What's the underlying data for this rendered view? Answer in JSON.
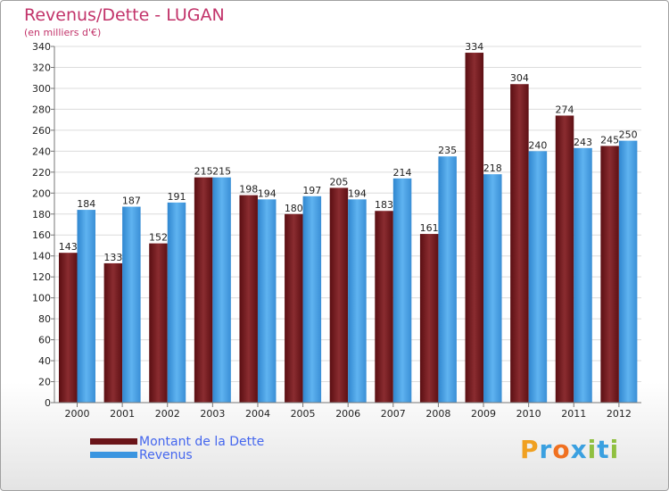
{
  "title": "Revenus/Dette - LUGAN",
  "subtitle": "(en milliers d'€)",
  "logo": {
    "text": "Proxiti",
    "letters": [
      "P",
      "r",
      "o",
      "x",
      "i",
      "t",
      "i"
    ],
    "colors": [
      "#f0a020",
      "#3aa0e0",
      "#f07020",
      "#3aa0e0",
      "#90c040",
      "#3aa0e0",
      "#90c040"
    ]
  },
  "chart_data": {
    "type": "bar",
    "categories": [
      "2000",
      "2001",
      "2002",
      "2003",
      "2004",
      "2005",
      "2006",
      "2007",
      "2008",
      "2009",
      "2010",
      "2011",
      "2012"
    ],
    "series": [
      {
        "name": "Montant de la Dette",
        "color": "#7a2226",
        "values": [
          143,
          133,
          152,
          215,
          198,
          180,
          205,
          183,
          161,
          334,
          304,
          274,
          245
        ]
      },
      {
        "name": "Revenus",
        "color": "#4aa3e8",
        "values": [
          184,
          187,
          191,
          215,
          194,
          197,
          194,
          214,
          235,
          218,
          240,
          243,
          250
        ]
      }
    ],
    "ylim": [
      0,
      340
    ],
    "yticks": [
      0,
      20,
      40,
      60,
      80,
      100,
      120,
      140,
      160,
      180,
      200,
      220,
      240,
      260,
      280,
      300,
      320,
      340
    ],
    "grid": true,
    "legend_position": "bottom-left"
  }
}
